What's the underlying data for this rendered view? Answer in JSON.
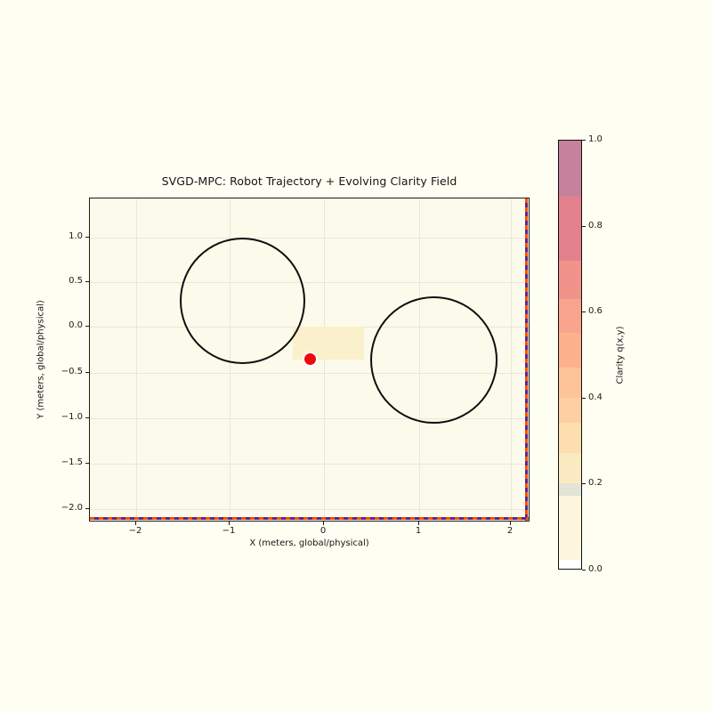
{
  "figure": {
    "title": "SVGD-MPC: Robot Trajectory + Evolving Clarity Field",
    "background": "#FFFEF2"
  },
  "plot": {
    "xlabel": "X (meters, global/physical)",
    "ylabel": "Y (meters, global/physical)",
    "bg": "#FCFAEB",
    "grid_color": "#EAE7D8",
    "x_ticks": [
      {
        "label": "−2",
        "px": 52
      },
      {
        "label": "−1",
        "px": 157
      },
      {
        "label": "0",
        "px": 263
      },
      {
        "label": "1",
        "px": 370
      },
      {
        "label": "2",
        "px": 473
      }
    ],
    "y_ticks": [
      {
        "label": "1.0",
        "py": 44
      },
      {
        "label": "0.5",
        "py": 94
      },
      {
        "label": "0.0",
        "py": 144
      },
      {
        "label": "−0.5",
        "py": 196
      },
      {
        "label": "−1.0",
        "py": 247
      },
      {
        "label": "−1.5",
        "py": 298
      },
      {
        "label": "−2.0",
        "py": 349
      }
    ]
  },
  "colorbar": {
    "label": "Clarity q(x,y)",
    "ticks": [
      {
        "label": "1.0",
        "py": 0
      },
      {
        "label": "0.8",
        "py": 97
      },
      {
        "label": "0.6",
        "py": 193
      },
      {
        "label": "0.4",
        "py": 290
      },
      {
        "label": "0.2",
        "py": 386
      },
      {
        "label": "0.0",
        "py": 483
      }
    ],
    "segments": [
      {
        "color": "#C6829B",
        "h": 13
      },
      {
        "color": "#E2818C",
        "h": 15
      },
      {
        "color": "#F2938B",
        "h": 9
      },
      {
        "color": "#F9A58D",
        "h": 8
      },
      {
        "color": "#FCB28B",
        "h": 8
      },
      {
        "color": "#FDC497",
        "h": 7
      },
      {
        "color": "#FDCFA2",
        "h": 6
      },
      {
        "color": "#FDDEAF",
        "h": 7
      },
      {
        "color": "#FBE9C1",
        "h": 7
      },
      {
        "color": "#E2E4D6",
        "h": 3
      },
      {
        "color": "#FDF6DC",
        "h": 15
      },
      {
        "color": "#FEFEFE",
        "h": 2
      }
    ]
  },
  "markers": {
    "robot_color": "#EE0A0A",
    "robot_edge": "#FFFFFF",
    "obstacle_stroke": "#0F0F0F",
    "boundary_purple": "#52288C",
    "boundary_orange": "#FF4E00",
    "patch_color": "#FAF0CB"
  },
  "chart_data": {
    "type": "scatter",
    "title": "SVGD-MPC: Robot Trajectory + Evolving Clarity Field",
    "xlabel": "X (meters, global/physical)",
    "ylabel": "Y (meters, global/physical)",
    "xlim": [
      -2.5,
      2.2
    ],
    "ylim": [
      -2.15,
      1.43
    ],
    "x_tick_values": [
      -2,
      -1,
      0,
      1,
      2
    ],
    "y_tick_values": [
      1.0,
      0.5,
      0.0,
      -0.5,
      -1.0,
      -1.5,
      -2.0
    ],
    "grid": true,
    "robot_position": {
      "x": -0.14,
      "y": -0.37,
      "marker": "circle",
      "color": "#EE0A0A"
    },
    "obstacles": [
      {
        "center": [
          -0.86,
          0.28
        ],
        "radius": 0.67,
        "stroke": "#0F0F0F",
        "fill": "none"
      },
      {
        "center": [
          1.18,
          -0.37
        ],
        "radius": 0.68,
        "stroke": "#0F0F0F",
        "fill": "none"
      }
    ],
    "clarity_field_patch": {
      "x_range": [
        -0.32,
        0.43
      ],
      "y_range": [
        -0.37,
        -0.01
      ],
      "approx_value": 0.3
    },
    "workspace_boundary": {
      "right_x": 2.19,
      "bottom_y": -2.13,
      "line_style": "dashed orange over purple"
    },
    "colorbar": {
      "label": "Clarity q(x,y)",
      "min": 0.0,
      "max": 1.0,
      "tick_values": [
        0.0,
        0.2,
        0.4,
        0.6,
        0.8,
        1.0
      ]
    }
  }
}
